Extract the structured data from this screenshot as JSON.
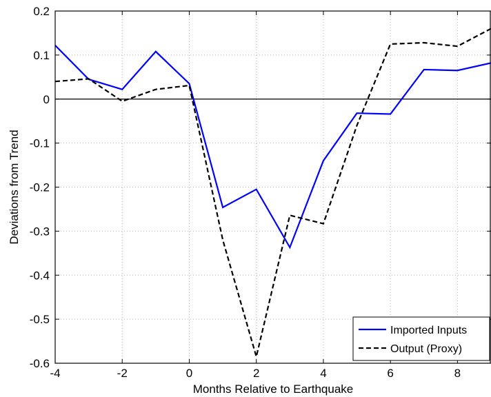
{
  "chart_data": {
    "type": "line",
    "xlabel": "Months Relative to Earthquake",
    "ylabel": "Deviations from Trend",
    "xlim": [
      -4,
      9
    ],
    "ylim": [
      -0.6,
      0.2
    ],
    "xticks": [
      -4,
      -2,
      0,
      2,
      4,
      6,
      8
    ],
    "yticks": [
      -0.6,
      -0.5,
      -0.4,
      -0.3,
      -0.2,
      -0.1,
      0,
      0.1,
      0.2
    ],
    "x_tick_labels": [
      "-4",
      "-2",
      "0",
      "2",
      "4",
      "6",
      "8"
    ],
    "y_tick_labels": [
      "-0.6",
      "-0.5",
      "-0.4",
      "-0.3",
      "-0.2",
      "-0.1",
      "0",
      "0.1",
      "0.2"
    ],
    "grid": true,
    "zero_line": true,
    "legend_position": "bottom-right",
    "x": [
      -4,
      -3,
      -2,
      -1,
      0,
      1,
      2,
      3,
      4,
      5,
      6,
      7,
      8,
      9
    ],
    "series": [
      {
        "name": "Imported Inputs",
        "color": "#0000ff",
        "style": "solid",
        "values": [
          0.122,
          0.045,
          0.022,
          0.108,
          0.035,
          -0.246,
          -0.205,
          -0.337,
          -0.14,
          -0.032,
          -0.034,
          0.067,
          0.065,
          0.082
        ]
      },
      {
        "name": "Output (Proxy)",
        "color": "#000000",
        "style": "dashed",
        "values": [
          0.04,
          0.046,
          -0.005,
          0.022,
          0.031,
          -0.32,
          -0.585,
          -0.264,
          -0.283,
          -0.06,
          0.125,
          0.128,
          0.12,
          0.16
        ]
      }
    ]
  }
}
